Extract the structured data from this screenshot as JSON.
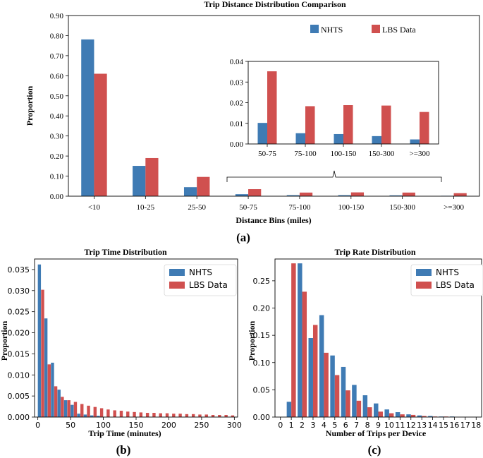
{
  "colors": {
    "nhts": "#3f7bb4",
    "lbs": "#d0504f"
  },
  "chart_data": [
    {
      "id": "a",
      "type": "bar",
      "panel_label": "(a)",
      "title": "Trip Distance Distribution Comparison",
      "xlabel": "Distance Bins (miles)",
      "ylabel": "Proportion",
      "ylim": [
        0,
        0.9
      ],
      "yticks": [
        "0.00",
        "0.10",
        "0.20",
        "0.30",
        "0.40",
        "0.50",
        "0.60",
        "0.70",
        "0.80",
        "0.90"
      ],
      "categories": [
        "<10",
        "10-25",
        "25-50",
        "50-75",
        "75-100",
        "100-150",
        "150-300",
        ">=300"
      ],
      "series": [
        {
          "name": "NHTS",
          "values": [
            0.781,
            0.151,
            0.045,
            0.01,
            0.005,
            0.005,
            0.004,
            0.002
          ]
        },
        {
          "name": "LBS Data",
          "values": [
            0.61,
            0.19,
            0.096,
            0.035,
            0.018,
            0.019,
            0.018,
            0.015
          ]
        }
      ],
      "legend": "top-right",
      "inset": {
        "ylim": [
          0,
          0.04
        ],
        "yticks": [
          "0.00",
          "0.01",
          "0.02",
          "0.03",
          "0.04"
        ],
        "categories": [
          "50-75",
          "75-100",
          "100-150",
          "150-300",
          ">=300"
        ],
        "series": [
          {
            "name": "NHTS",
            "values": [
              0.0102,
              0.0052,
              0.0048,
              0.0038,
              0.0022
            ]
          },
          {
            "name": "LBS Data",
            "values": [
              0.0352,
              0.0183,
              0.0188,
              0.0186,
              0.0155
            ]
          }
        ]
      }
    },
    {
      "id": "b",
      "type": "bar",
      "panel_label": "(b)",
      "title": "Trip Time Distribution",
      "xlabel": "Trip Time (minutes)",
      "ylabel": "Proportion",
      "xlim": [
        -5,
        305
      ],
      "ylim": [
        0,
        0.0375
      ],
      "xticks": [
        0,
        50,
        100,
        150,
        200,
        250,
        300
      ],
      "yticks": [
        "0.000",
        "0.005",
        "0.010",
        "0.015",
        "0.020",
        "0.025",
        "0.030",
        "0.035"
      ],
      "legend": "top-right",
      "series": [
        {
          "name": "NHTS",
          "x": [
            5,
            15,
            25,
            35,
            45,
            55,
            65,
            75,
            85,
            95
          ],
          "values": [
            0.0362,
            0.0234,
            0.0129,
            0.0065,
            0.004,
            0.0029,
            0.0008,
            0.0006,
            0.0004,
            0.0003
          ]
        },
        {
          "name": "LBS Data",
          "x": [
            10,
            20,
            30,
            40,
            50,
            60,
            70,
            80,
            90,
            100,
            110,
            120,
            130,
            140,
            150,
            160,
            170,
            180,
            190,
            200,
            210,
            220,
            230,
            240,
            250,
            260,
            270,
            280,
            290,
            300
          ],
          "values": [
            0.0302,
            0.0125,
            0.0073,
            0.0048,
            0.004,
            0.0036,
            0.0031,
            0.0027,
            0.0024,
            0.0021,
            0.0018,
            0.0016,
            0.0015,
            0.0013,
            0.0012,
            0.0011,
            0.001,
            0.001,
            0.0009,
            0.0009,
            0.0008,
            0.0008,
            0.0007,
            0.0007,
            0.0006,
            0.0006,
            0.0005,
            0.0005,
            0.0005,
            0.0004
          ]
        }
      ]
    },
    {
      "id": "c",
      "type": "bar",
      "panel_label": "(c)",
      "title": "Trip Rate Distribution",
      "xlabel": "Number of Trips per Device",
      "ylabel": "Proportion",
      "ylim": [
        0,
        0.29
      ],
      "categories": [
        "0",
        "1",
        "2",
        "3",
        "4",
        "5",
        "6",
        "7",
        "8",
        "9",
        "10",
        "11",
        "12",
        "13",
        "14",
        "15",
        "16",
        "17",
        "18"
      ],
      "yticks": [
        "0.00",
        "0.05",
        "0.10",
        "0.15",
        "0.20",
        "0.25"
      ],
      "legend": "top-right",
      "series": [
        {
          "name": "NHTS",
          "values": [
            0.0,
            0.028,
            0.282,
            0.145,
            0.187,
            0.113,
            0.092,
            0.059,
            0.04,
            0.025,
            0.014,
            0.009,
            0.005,
            0.003,
            0.002,
            0.001,
            0.001,
            0.0,
            0.0
          ]
        },
        {
          "name": "LBS Data",
          "values": [
            0.0,
            0.282,
            0.23,
            0.169,
            0.118,
            0.077,
            0.049,
            0.03,
            0.018,
            0.01,
            0.007,
            0.005,
            0.004,
            0.002,
            0.001,
            0.001,
            0.0,
            0.0,
            0.0
          ]
        }
      ]
    }
  ]
}
